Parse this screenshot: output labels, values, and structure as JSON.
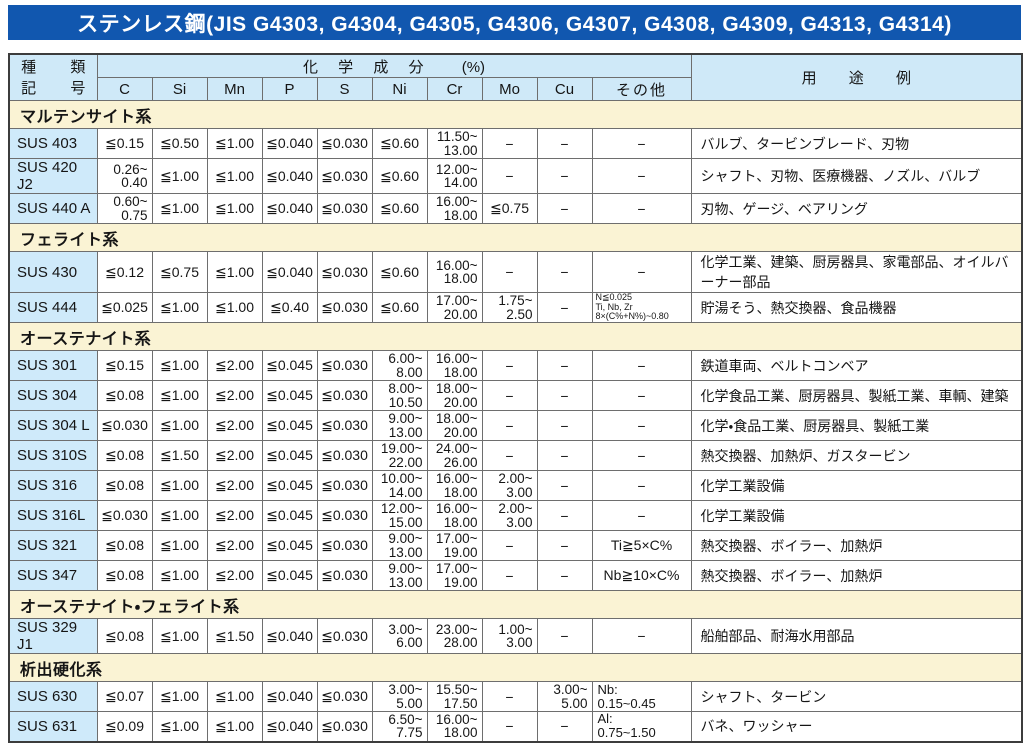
{
  "page": {
    "title": "ステンレス鋼(JIS G4303, G4304, G4305, G4306, G4307, G4308, G4309, G4313, G4314)",
    "accent_blue": "#1157af",
    "header_blue": "#cfe9f8",
    "code_cell_blue": "#cfeafa",
    "section_cream": "#faf3d4"
  },
  "table": {
    "header": {
      "type_label_top": "種 類",
      "type_label_bottom": "記 号",
      "chem_label": "化 学 成 分",
      "chem_unit": "(%)",
      "usage_label": "用 途 例",
      "chem_columns": [
        "C",
        "Si",
        "Mn",
        "P",
        "S",
        "Ni",
        "Cr",
        "Mo",
        "Cu",
        "その他"
      ]
    },
    "sections": [
      {
        "name": "マルテンサイト系",
        "rows": [
          {
            "code": "SUS 403",
            "cells": [
              "≦0.15",
              "≦0.50",
              "≦1.00",
              "≦0.040",
              "≦0.030",
              "≦0.60",
              "11.50~\n13.00",
              "−",
              "−",
              "−"
            ],
            "usage": "バルブ、タービンブレード、刃物"
          },
          {
            "code": "SUS 420 J2",
            "cells": [
              "0.26~\n0.40",
              "≦1.00",
              "≦1.00",
              "≦0.040",
              "≦0.030",
              "≦0.60",
              "12.00~\n14.00",
              "−",
              "−",
              "−"
            ],
            "usage": "シャフト、刃物、医療機器、ノズル、バルブ"
          },
          {
            "code": "SUS 440 A",
            "cells": [
              "0.60~\n0.75",
              "≦1.00",
              "≦1.00",
              "≦0.040",
              "≦0.030",
              "≦0.60",
              "16.00~\n18.00",
              "≦0.75",
              "−",
              "−"
            ],
            "usage": "刃物、ゲージ、ベアリング"
          }
        ]
      },
      {
        "name": "フェライト系",
        "rows": [
          {
            "code": "SUS 430",
            "cells": [
              "≦0.12",
              "≦0.75",
              "≦1.00",
              "≦0.040",
              "≦0.030",
              "≦0.60",
              "16.00~\n18.00",
              "−",
              "−",
              "−"
            ],
            "usage": "化学工業、建築、厨房器具、家電部品、オイルバーナー部品"
          },
          {
            "code": "SUS 444",
            "cells": [
              "≦0.025",
              "≦1.00",
              "≦1.00",
              "≦0.40",
              "≦0.030",
              "≦0.60",
              "17.00~\n20.00",
              "1.75~\n2.50",
              "−",
              "N≦0.025\nTi, Nb, Zr\n8×(C%+N%)~0.80"
            ],
            "usage": "貯湯そう、熱交換器、食品機器"
          }
        ]
      },
      {
        "name": "オーステナイト系",
        "rows": [
          {
            "code": "SUS 301",
            "cells": [
              "≦0.15",
              "≦1.00",
              "≦2.00",
              "≦0.045",
              "≦0.030",
              "6.00~\n8.00",
              "16.00~\n18.00",
              "−",
              "−",
              "−"
            ],
            "usage": "鉄道車両、ベルトコンベア"
          },
          {
            "code": "SUS 304",
            "cells": [
              "≦0.08",
              "≦1.00",
              "≦2.00",
              "≦0.045",
              "≦0.030",
              "8.00~\n10.50",
              "18.00~\n20.00",
              "−",
              "−",
              "−"
            ],
            "usage": "化学食品工業、厨房器具、製紙工業、車輌、建築"
          },
          {
            "code": "SUS 304 L",
            "cells": [
              "≦0.030",
              "≦1.00",
              "≦2.00",
              "≦0.045",
              "≦0.030",
              "9.00~\n13.00",
              "18.00~\n20.00",
              "−",
              "−",
              "−"
            ],
            "usage": "化学・食品工業、厨房器具、製紙工業"
          },
          {
            "code": "SUS 310S",
            "cells": [
              "≦0.08",
              "≦1.50",
              "≦2.00",
              "≦0.045",
              "≦0.030",
              "19.00~\n22.00",
              "24.00~\n26.00",
              "−",
              "−",
              "−"
            ],
            "usage": "熱交換器、加熱炉、ガスタービン"
          },
          {
            "code": "SUS 316",
            "cells": [
              "≦0.08",
              "≦1.00",
              "≦2.00",
              "≦0.045",
              "≦0.030",
              "10.00~\n14.00",
              "16.00~\n18.00",
              "2.00~\n3.00",
              "−",
              "−"
            ],
            "usage": "化学工業設備"
          },
          {
            "code": "SUS 316L",
            "cells": [
              "≦0.030",
              "≦1.00",
              "≦2.00",
              "≦0.045",
              "≦0.030",
              "12.00~\n15.00",
              "16.00~\n18.00",
              "2.00~\n3.00",
              "−",
              "−"
            ],
            "usage": "化学工業設備"
          },
          {
            "code": "SUS 321",
            "cells": [
              "≦0.08",
              "≦1.00",
              "≦2.00",
              "≦0.045",
              "≦0.030",
              "9.00~\n13.00",
              "17.00~\n19.00",
              "−",
              "−",
              "Ti≧5×C%"
            ],
            "usage": "熱交換器、ボイラー、加熱炉"
          },
          {
            "code": "SUS 347",
            "cells": [
              "≦0.08",
              "≦1.00",
              "≦2.00",
              "≦0.045",
              "≦0.030",
              "9.00~\n13.00",
              "17.00~\n19.00",
              "−",
              "−",
              "Nb≧10×C%"
            ],
            "usage": "熱交換器、ボイラー、加熱炉"
          }
        ]
      },
      {
        "name": "オーステナイト・フェライト系",
        "rows": [
          {
            "code": "SUS 329 J1",
            "cells": [
              "≦0.08",
              "≦1.00",
              "≦1.50",
              "≦0.040",
              "≦0.030",
              "3.00~\n6.00",
              "23.00~\n28.00",
              "1.00~\n3.00",
              "−",
              "−"
            ],
            "usage": "船舶部品、耐海水用部品"
          }
        ]
      },
      {
        "name": "析出硬化系",
        "rows": [
          {
            "code": "SUS 630",
            "cells": [
              "≦0.07",
              "≦1.00",
              "≦1.00",
              "≦0.040",
              "≦0.030",
              "3.00~\n5.00",
              "15.50~\n17.50",
              "−",
              "3.00~\n5.00",
              "Nb:\n0.15~0.45"
            ],
            "usage": "シャフト、タービン"
          },
          {
            "code": "SUS 631",
            "cells": [
              "≦0.09",
              "≦1.00",
              "≦1.00",
              "≦0.040",
              "≦0.030",
              "6.50~\n7.75",
              "16.00~\n18.00",
              "−",
              "−",
              "Al:\n0.75~1.50"
            ],
            "usage": "バネ、ワッシャー"
          }
        ]
      }
    ]
  }
}
